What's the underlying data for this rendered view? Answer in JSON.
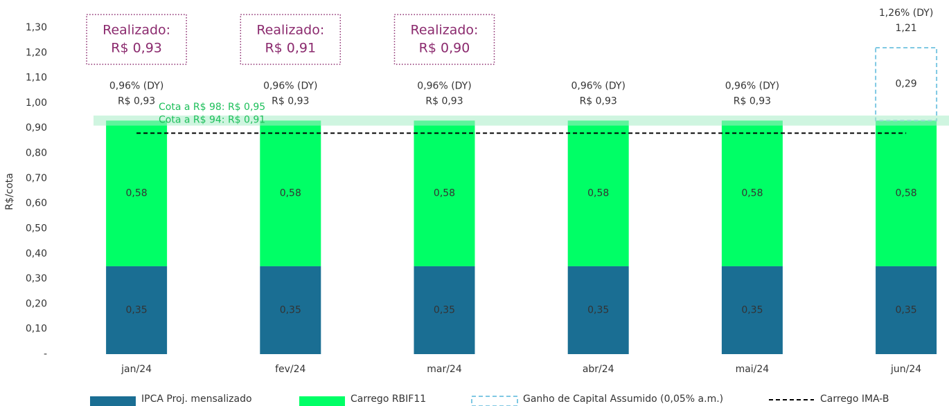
{
  "chart_data": {
    "type": "bar",
    "stacked": true,
    "y_label": "R$/cota",
    "categories": [
      "jan/24",
      "fev/24",
      "mar/24",
      "abr/24",
      "mai/24",
      "jun/24"
    ],
    "series": [
      {
        "name": "IPCA Proj. mensalizado",
        "color": "#1a6e93",
        "values": [
          0.35,
          0.35,
          0.35,
          0.35,
          0.35,
          0.35
        ],
        "value_labels": [
          "0,35",
          "0,35",
          "0,35",
          "0,35",
          "0,35",
          "0,35"
        ]
      },
      {
        "name": "Carrego RBIF11",
        "color": "#00ff66",
        "values": [
          0.58,
          0.58,
          0.58,
          0.58,
          0.58,
          0.58
        ],
        "value_labels": [
          "0,58",
          "0,58",
          "0,58",
          "0,58",
          "0,58",
          "0,58"
        ]
      },
      {
        "name": "Ganho de Capital Assumido (0,05% a.m.)",
        "color": "#7ec8e3",
        "style": "dashed",
        "values": [
          null,
          null,
          null,
          null,
          null,
          0.29
        ],
        "value_labels": [
          null,
          null,
          null,
          null,
          null,
          "0,29"
        ]
      },
      {
        "name": "Carrego IMA-B",
        "color": "#000000",
        "type": "line",
        "style": "dashed",
        "values": [
          0.88,
          0.88,
          0.88,
          0.88,
          0.88,
          0.88
        ]
      }
    ],
    "total_labels": [
      [
        "0,96% (DY)",
        "R$ 0,93"
      ],
      [
        "0,96% (DY)",
        "R$ 0,93"
      ],
      [
        "0,96% (DY)",
        "R$ 0,93"
      ],
      [
        "0,96% (DY)",
        "R$ 0,93"
      ],
      [
        "0,96% (DY)",
        "R$ 0,93"
      ],
      [
        "1,26% (DY)",
        "1,21"
      ]
    ],
    "realized": [
      [
        "Realizado:",
        "R$ 0,93"
      ],
      [
        "Realizado:",
        "R$ 0,91"
      ],
      [
        "Realizado:",
        "R$ 0,90"
      ]
    ],
    "annotations": [
      {
        "text": "Cota a R$ 98: R$ 0,95",
        "value": 0.95
      },
      {
        "text": "Cota a R$ 94: R$ 0,91",
        "value": 0.91
      }
    ],
    "ylim": [
      0,
      1.3
    ],
    "yticks": [
      {
        "value": 0,
        "label": "-"
      },
      {
        "value": 0.1,
        "label": "0,10"
      },
      {
        "value": 0.2,
        "label": "0,20"
      },
      {
        "value": 0.3,
        "label": "0,30"
      },
      {
        "value": 0.4,
        "label": "0,40"
      },
      {
        "value": 0.5,
        "label": "0,50"
      },
      {
        "value": 0.6,
        "label": "0,60"
      },
      {
        "value": 0.7,
        "label": "0,70"
      },
      {
        "value": 0.8,
        "label": "0,80"
      },
      {
        "value": 0.9,
        "label": "0,90"
      },
      {
        "value": 1.0,
        "label": "1,00"
      },
      {
        "value": 1.1,
        "label": "1,10"
      },
      {
        "value": 1.2,
        "label": "1,20"
      },
      {
        "value": 1.3,
        "label": "1,30"
      }
    ],
    "grid": false
  }
}
